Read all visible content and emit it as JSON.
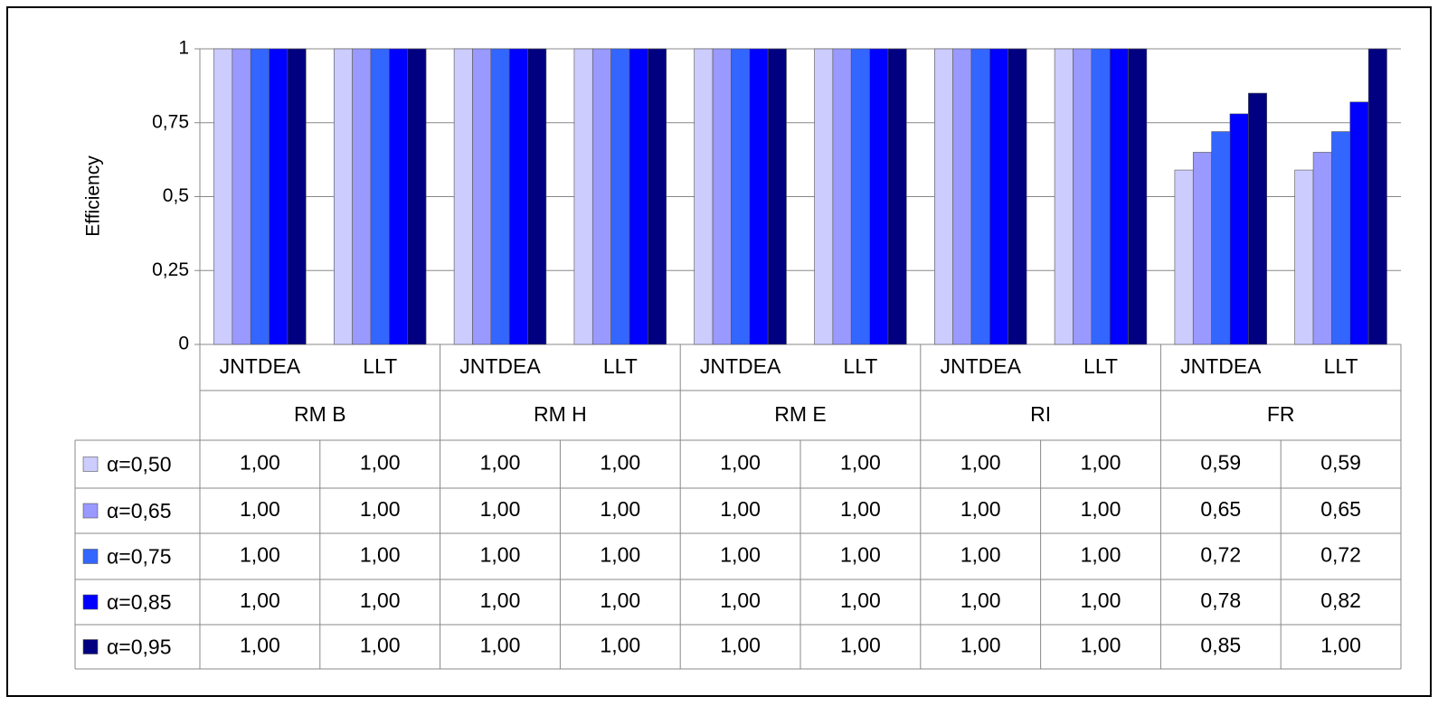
{
  "chart_data": {
    "type": "bar",
    "y_label": "Efficiency",
    "categories": [
      "JNTDEA",
      "LLT",
      "JNTDEA",
      "LLT",
      "JNTDEA",
      "LLT",
      "JNTDEA",
      "LLT",
      "JNTDEA",
      "LLT"
    ],
    "groups": [
      "RM B",
      "RM H",
      "RM E",
      "RI",
      "FR"
    ],
    "ylim": [
      0,
      1
    ],
    "yticks": [
      0,
      {
        "value": 0.25,
        "label": "0,25"
      },
      {
        "value": 0.5,
        "label": "0,5"
      },
      {
        "value": 0.75,
        "label": "0,75"
      },
      1
    ],
    "grid": true,
    "series": [
      {
        "name": "α=0,50",
        "color": "#ccccff",
        "values": [
          1,
          1,
          1,
          1,
          1,
          1,
          1,
          1,
          0.59,
          0.59
        ],
        "value_labels": [
          "1,00",
          "1,00",
          "1,00",
          "1,00",
          "1,00",
          "1,00",
          "1,00",
          "1,00",
          "0,59",
          "0,59"
        ]
      },
      {
        "name": "α=0,65",
        "color": "#9999ff",
        "values": [
          1,
          1,
          1,
          1,
          1,
          1,
          1,
          1,
          0.65,
          0.65
        ],
        "value_labels": [
          "1,00",
          "1,00",
          "1,00",
          "1,00",
          "1,00",
          "1,00",
          "1,00",
          "1,00",
          "0,65",
          "0,65"
        ]
      },
      {
        "name": "α=0,75",
        "color": "#3366ff",
        "values": [
          1,
          1,
          1,
          1,
          1,
          1,
          1,
          1,
          0.72,
          0.72
        ],
        "value_labels": [
          "1,00",
          "1,00",
          "1,00",
          "1,00",
          "1,00",
          "1,00",
          "1,00",
          "1,00",
          "0,72",
          "0,72"
        ]
      },
      {
        "name": "α=0,85",
        "color": "#0000ff",
        "values": [
          1,
          1,
          1,
          1,
          1,
          1,
          1,
          1,
          0.78,
          0.82
        ],
        "value_labels": [
          "1,00",
          "1,00",
          "1,00",
          "1,00",
          "1,00",
          "1,00",
          "1,00",
          "1,00",
          "0,78",
          "0,82"
        ]
      },
      {
        "name": "α=0,95",
        "color": "#000080",
        "values": [
          1,
          1,
          1,
          1,
          1,
          1,
          1,
          1,
          0.85,
          1
        ],
        "value_labels": [
          "1,00",
          "1,00",
          "1,00",
          "1,00",
          "1,00",
          "1,00",
          "1,00",
          "1,00",
          "0,85",
          "1,00"
        ]
      }
    ]
  }
}
